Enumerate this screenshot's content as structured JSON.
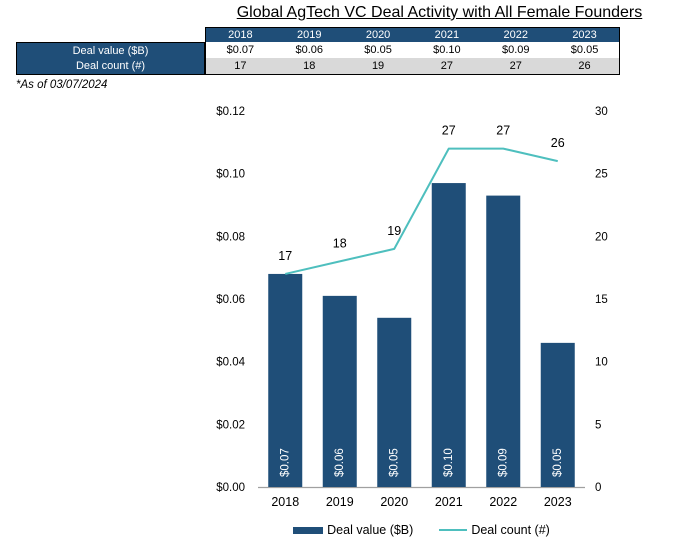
{
  "title": "Global AgTech VC Deal Activity with All Female Founders",
  "footnote": "*As of 03/07/2024",
  "table": {
    "year_headers": [
      "2018",
      "2019",
      "2020",
      "2021",
      "2022",
      "2023"
    ],
    "rows": [
      {
        "label": "Deal value ($B)",
        "values": [
          "$0.07",
          "$0.06",
          "$0.05",
          "$0.10",
          "$0.09",
          "$0.05"
        ]
      },
      {
        "label": "Deal count (#)",
        "values": [
          "17",
          "18",
          "19",
          "27",
          "27",
          "26"
        ]
      }
    ]
  },
  "chart_data": {
    "type": "bar",
    "subtype": "combo-bar-line-dual-axis",
    "title": "Global AgTech VC Deal Activity with All Female Founders",
    "categories": [
      "2018",
      "2019",
      "2020",
      "2021",
      "2022",
      "2023"
    ],
    "series": [
      {
        "name": "Deal value ($B)",
        "type": "bar",
        "axis": "left",
        "values": [
          0.068,
          0.061,
          0.054,
          0.097,
          0.093,
          0.046
        ],
        "labels": [
          "$0.07",
          "$0.06",
          "$0.05",
          "$0.10",
          "$0.09",
          "$0.05"
        ]
      },
      {
        "name": "Deal count (#)",
        "type": "line",
        "axis": "right",
        "values": [
          17,
          18,
          19,
          27,
          27,
          26
        ],
        "labels": [
          "17",
          "18",
          "19",
          "27",
          "27",
          "26"
        ]
      }
    ],
    "left_axis": {
      "min": 0,
      "max": 0.12,
      "step": 0.02,
      "tick_labels": [
        "$0.00",
        "$0.02",
        "$0.04",
        "$0.06",
        "$0.08",
        "$0.10",
        "$0.12"
      ]
    },
    "right_axis": {
      "min": 0,
      "max": 30,
      "step": 5,
      "tick_labels": [
        "0",
        "5",
        "10",
        "15",
        "20",
        "25",
        "30"
      ]
    },
    "grid": false,
    "legend_position": "bottom"
  },
  "colors": {
    "bar": "#1F4E78",
    "line": "#4EBFBE",
    "table_header_bg": "#1F4E78",
    "table_alt_row_bg": "#D9D9D9",
    "axis_line": "#A0A0A0",
    "bar_label_text": "#FFFFFF"
  }
}
